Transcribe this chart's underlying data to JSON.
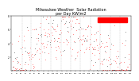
{
  "title": "Milwaukee Weather  Solar Radiation\nper Day KW/m2",
  "title_fontsize": 3.5,
  "ylim": [
    0,
    8
  ],
  "yticks": [
    2,
    4,
    6,
    8
  ],
  "ytick_labels": [
    "2",
    "4",
    "6",
    "8"
  ],
  "background_color": "#ffffff",
  "dot_color_red": "#ff0000",
  "dot_color_black": "#000000",
  "legend_color": "#ff0000",
  "grid_color": "#888888",
  "num_points": 365
}
